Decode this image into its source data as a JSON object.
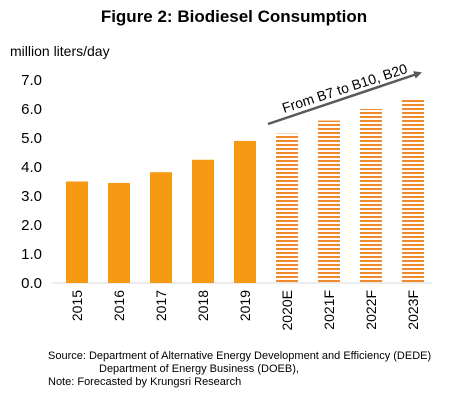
{
  "chart_data": {
    "type": "bar",
    "title": "Figure 2: Biodiesel Consumption",
    "ylabel": "million liters/day",
    "xlabel": "",
    "ylim": [
      0,
      7
    ],
    "yticks": [
      "0.0",
      "1.0",
      "2.0",
      "3.0",
      "4.0",
      "5.0",
      "6.0",
      "7.0"
    ],
    "categories": [
      "2015",
      "2016",
      "2017",
      "2018",
      "2019",
      "2020E",
      "2021F",
      "2022F",
      "2023F"
    ],
    "values": [
      3.5,
      3.45,
      3.82,
      4.25,
      4.9,
      5.15,
      5.6,
      6.0,
      6.35
    ],
    "forecast": [
      false,
      false,
      false,
      false,
      false,
      true,
      true,
      true,
      true
    ],
    "annotation": "From B7 to B10, B20",
    "grid": false,
    "colors": {
      "actual": "#F59A12",
      "forecast": "#F08A2C",
      "arrow": "#595959"
    }
  },
  "notes": {
    "source_line1": "Source: Department of Alternative Energy Development and Efficiency (DEDE)",
    "source_line2": "Department of Energy Business (DOEB),",
    "note": "Note: Forecasted by Krungsri Research"
  }
}
